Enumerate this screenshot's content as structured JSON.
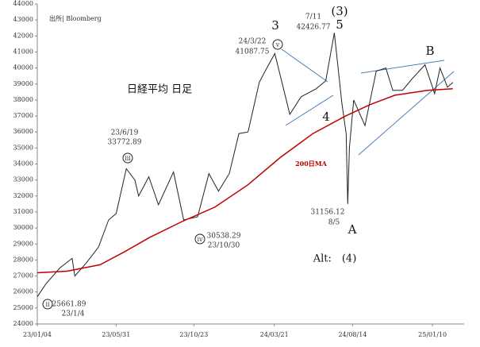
{
  "chart_data": {
    "type": "line",
    "title": "日経平均 日足",
    "source": "出所| Bloomberg",
    "x": [
      "23/01/04",
      "23/01/20",
      "23/02/15",
      "23/03/10",
      "23/03/15",
      "23/04/05",
      "23/04/28",
      "23/05/17",
      "23/05/31",
      "23/06/19",
      "23/07/05",
      "23/07/12",
      "23/07/31",
      "23/08/18",
      "23/09/15",
      "23/10/04",
      "23/10/30",
      "23/11/20",
      "23/12/08",
      "23/12/28",
      "24/01/15",
      "24/02/01",
      "24/02/22",
      "24/03/07",
      "24/03/22",
      "24/04/19",
      "24/05/10",
      "24/06/07",
      "24/06/25",
      "24/07/11",
      "24/07/25",
      "24/08/02",
      "24/08/05",
      "24/08/08",
      "24/08/16",
      "24/09/06",
      "24/09/27",
      "24/10/15",
      "24/10/28",
      "24/11/15",
      "24/12/05",
      "24/12/27",
      "25/01/14",
      "25/01/24",
      "25/02/07",
      "25/02/17"
    ],
    "series": [
      {
        "name": "日経平均",
        "color": "#222222",
        "values": [
          25700,
          26500,
          27500,
          28100,
          27000,
          27800,
          28800,
          30500,
          30900,
          33700,
          33000,
          32000,
          33200,
          31450,
          33500,
          30500,
          30700,
          33400,
          32300,
          33400,
          35900,
          36000,
          39100,
          40000,
          40900,
          37100,
          38200,
          38700,
          39200,
          42200,
          37800,
          35900,
          31500,
          35000,
          38000,
          36400,
          39800,
          40000,
          38600,
          38600,
          39400,
          40200,
          38400,
          40000,
          38800,
          39100
        ]
      },
      {
        "name": "200日MA",
        "color": "#c00000",
        "x": [
          "23/01/04",
          "23/03/01",
          "23/05/01",
          "23/06/15",
          "23/08/01",
          "23/10/01",
          "23/12/01",
          "24/02/01",
          "24/04/01",
          "24/06/01",
          "24/08/01",
          "24/09/15",
          "24/11/01",
          "25/01/01",
          "25/02/17"
        ],
        "values": [
          27200,
          27300,
          27700,
          28500,
          29400,
          30400,
          31300,
          32700,
          34400,
          35900,
          37000,
          37700,
          38300,
          38600,
          38700
        ]
      }
    ],
    "xlim": [
      "23/01/04",
      "25/03/10"
    ],
    "xticks": [
      "23/01/04",
      "23/05/31",
      "23/10/23",
      "24/03/21",
      "24/08/14",
      "25/01/10"
    ],
    "ylim": [
      24000,
      44000
    ],
    "yticks": [
      24000,
      25000,
      26000,
      27000,
      28000,
      29000,
      30000,
      31000,
      32000,
      33000,
      34000,
      35000,
      36000,
      37000,
      38000,
      39000,
      40000,
      41000,
      42000,
      43000,
      44000
    ],
    "annotations": [
      "24/3/22",
      "41087.75",
      "7/11",
      "42426.77",
      "23/6/19",
      "33772.89",
      "30538.29",
      "23/10/30",
      "31156.12",
      "8/5",
      "25661.89",
      "23/1/4",
      "3",
      "(3)",
      "5",
      "4",
      "A",
      "B",
      "Alt:　(4)",
      "ii",
      "iii",
      "iv",
      "v"
    ]
  }
}
